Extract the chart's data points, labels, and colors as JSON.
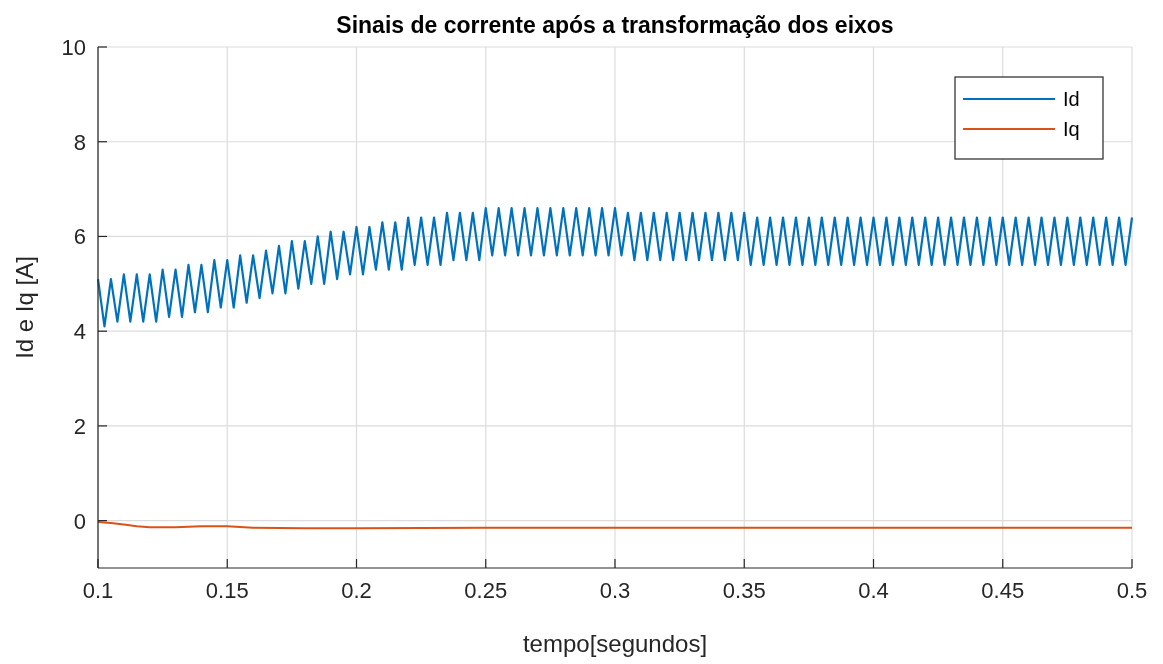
{
  "chart_data": {
    "type": "line",
    "title": "Sinais de corrente após a transformação dos eixos",
    "xlabel": "tempo[segundos]",
    "ylabel": "Id e Iq [A]",
    "xlim": [
      0.1,
      0.5
    ],
    "xticks": [
      0.1,
      0.15,
      0.2,
      0.25,
      0.3,
      0.35,
      0.4,
      0.45,
      0.5
    ],
    "ylim": [
      -1,
      10
    ],
    "yticks": [
      0,
      2,
      4,
      6,
      8,
      10
    ],
    "grid": true,
    "legend": "top right",
    "line_style": "solid",
    "series": [
      {
        "name": "Id",
        "color": "#0072bd",
        "x": [
          0.1,
          0.1025,
          0.105,
          0.1075,
          0.11,
          0.1125,
          0.115,
          0.1175,
          0.12,
          0.1225,
          0.125,
          0.1275,
          0.13,
          0.1325,
          0.135,
          0.1375,
          0.14,
          0.1425,
          0.145,
          0.1475,
          0.15,
          0.1525,
          0.155,
          0.1575,
          0.16,
          0.1625,
          0.165,
          0.1675,
          0.17,
          0.1725,
          0.175,
          0.1775,
          0.18,
          0.1825,
          0.185,
          0.1875,
          0.19,
          0.1925,
          0.195,
          0.1975,
          0.2,
          0.2025,
          0.205,
          0.2075,
          0.21,
          0.2125,
          0.215,
          0.2175,
          0.22,
          0.2225,
          0.225,
          0.2275,
          0.23,
          0.2325,
          0.235,
          0.2375,
          0.24,
          0.2425,
          0.245,
          0.2475,
          0.25,
          0.2525,
          0.255,
          0.2575,
          0.26,
          0.2625,
          0.265,
          0.2675,
          0.27,
          0.2725,
          0.275,
          0.2775,
          0.28,
          0.2825,
          0.285,
          0.2875,
          0.29,
          0.2925,
          0.295,
          0.2975,
          0.3,
          0.3025,
          0.305,
          0.3075,
          0.31,
          0.3125,
          0.315,
          0.3175,
          0.32,
          0.3225,
          0.325,
          0.3275,
          0.33,
          0.3325,
          0.335,
          0.3375,
          0.34,
          0.3425,
          0.345,
          0.3475,
          0.35,
          0.3525,
          0.355,
          0.3575,
          0.36,
          0.3625,
          0.365,
          0.3675,
          0.37,
          0.3725,
          0.375,
          0.3775,
          0.38,
          0.3825,
          0.385,
          0.3875,
          0.39,
          0.3925,
          0.395,
          0.3975,
          0.4,
          0.4025,
          0.405,
          0.4075,
          0.41,
          0.4125,
          0.415,
          0.4175,
          0.42,
          0.4225,
          0.425,
          0.4275,
          0.43,
          0.4325,
          0.435,
          0.4375,
          0.44,
          0.4425,
          0.445,
          0.4475,
          0.45,
          0.4525,
          0.455,
          0.4575,
          0.46,
          0.4625,
          0.465,
          0.4675,
          0.47,
          0.4725,
          0.475,
          0.4775,
          0.48,
          0.4825,
          0.485,
          0.4875,
          0.49,
          0.4925,
          0.495,
          0.4975,
          0.5
        ],
        "values": [
          5.1,
          4.1,
          5.1,
          4.2,
          5.2,
          4.2,
          5.2,
          4.2,
          5.2,
          4.2,
          5.3,
          4.3,
          5.3,
          4.3,
          5.4,
          4.4,
          5.4,
          4.4,
          5.5,
          4.5,
          5.5,
          4.5,
          5.6,
          4.6,
          5.6,
          4.7,
          5.7,
          4.8,
          5.8,
          4.8,
          5.9,
          4.9,
          5.9,
          5.0,
          6.0,
          5.0,
          6.1,
          5.1,
          6.1,
          5.2,
          6.2,
          5.2,
          6.2,
          5.3,
          6.3,
          5.3,
          6.3,
          5.3,
          6.4,
          5.4,
          6.4,
          5.4,
          6.4,
          5.4,
          6.5,
          5.5,
          6.5,
          5.5,
          6.5,
          5.5,
          6.6,
          5.6,
          6.6,
          5.6,
          6.6,
          5.6,
          6.6,
          5.6,
          6.6,
          5.6,
          6.6,
          5.6,
          6.6,
          5.6,
          6.6,
          5.6,
          6.6,
          5.6,
          6.6,
          5.6,
          6.6,
          5.6,
          6.5,
          5.5,
          6.5,
          5.5,
          6.5,
          5.5,
          6.5,
          5.5,
          6.5,
          5.5,
          6.5,
          5.5,
          6.5,
          5.5,
          6.5,
          5.5,
          6.5,
          5.5,
          6.5,
          5.4,
          6.4,
          5.4,
          6.4,
          5.4,
          6.4,
          5.4,
          6.4,
          5.4,
          6.4,
          5.4,
          6.4,
          5.4,
          6.4,
          5.4,
          6.4,
          5.4,
          6.4,
          5.4,
          6.4,
          5.4,
          6.4,
          5.4,
          6.4,
          5.4,
          6.4,
          5.4,
          6.4,
          5.4,
          6.4,
          5.4,
          6.4,
          5.4,
          6.4,
          5.4,
          6.4,
          5.4,
          6.4,
          5.4,
          6.4,
          5.4,
          6.4,
          5.4,
          6.4,
          5.4,
          6.4,
          5.4,
          6.4,
          5.4,
          6.4,
          5.4,
          6.4,
          5.4,
          6.4,
          5.4,
          6.4,
          5.4,
          6.4,
          5.4,
          6.4
        ]
      },
      {
        "name": "Iq",
        "color": "#d95319",
        "x": [
          0.1,
          0.105,
          0.11,
          0.115,
          0.12,
          0.13,
          0.14,
          0.15,
          0.16,
          0.18,
          0.2,
          0.25,
          0.3,
          0.35,
          0.4,
          0.45,
          0.5
        ],
        "values": [
          -0.03,
          -0.05,
          -0.08,
          -0.12,
          -0.14,
          -0.14,
          -0.12,
          -0.12,
          -0.15,
          -0.16,
          -0.16,
          -0.15,
          -0.15,
          -0.15,
          -0.15,
          -0.15,
          -0.15
        ]
      }
    ]
  }
}
